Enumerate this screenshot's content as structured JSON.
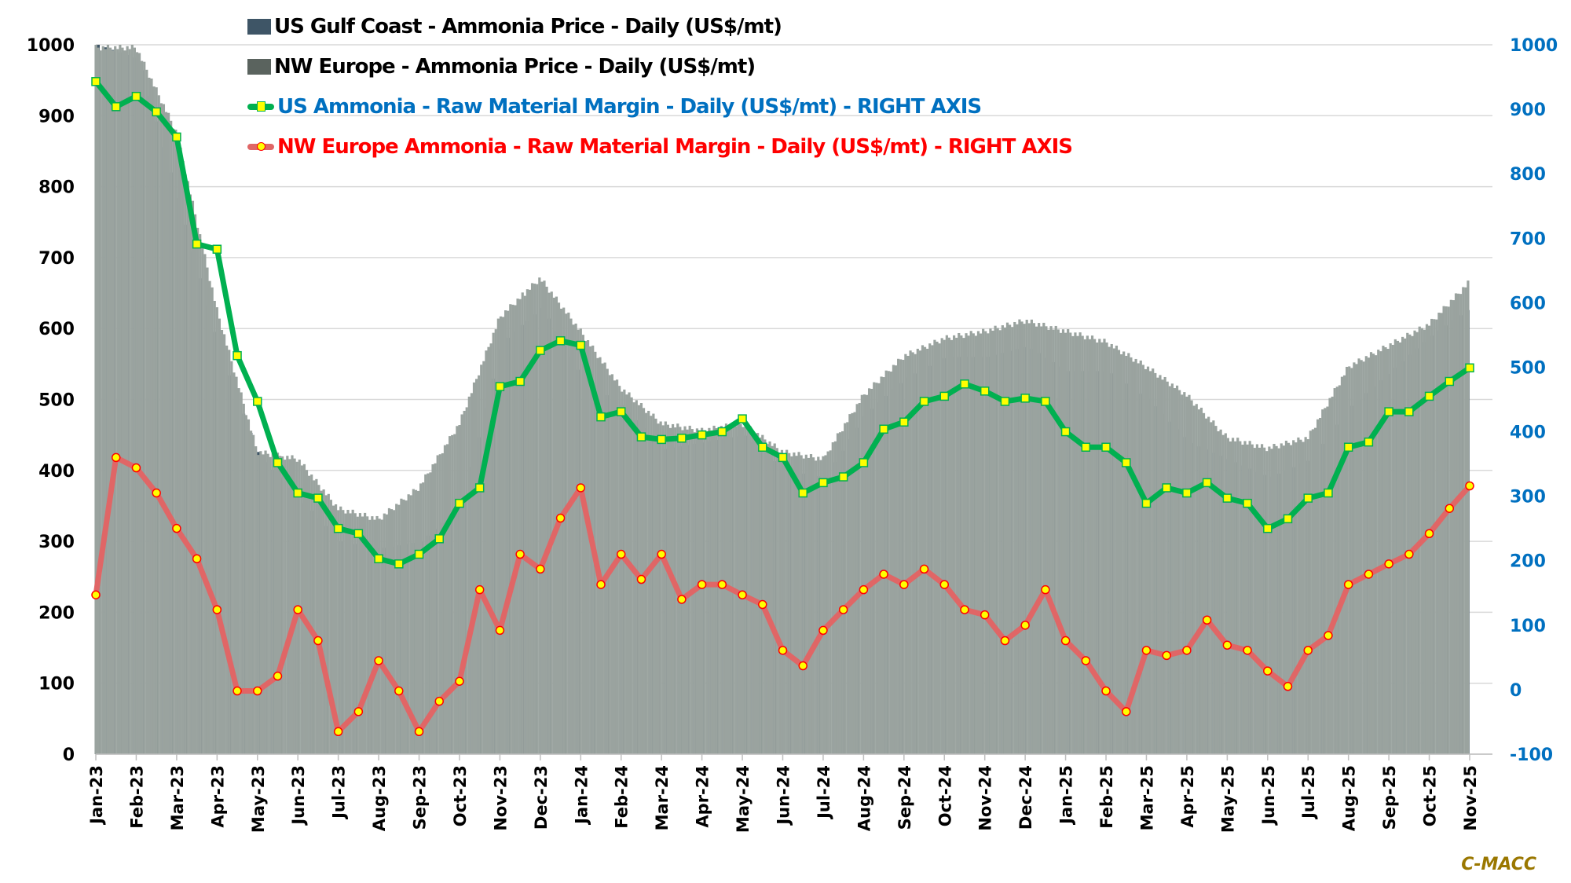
{
  "chart_data": {
    "type": "bar",
    "title": "",
    "xlabel": "",
    "ylabel_left": "",
    "ylabel_right": "",
    "left_axis": {
      "min": 0,
      "max": 1000,
      "ticks": [
        0,
        100,
        200,
        300,
        400,
        500,
        600,
        700,
        800,
        900,
        1000
      ]
    },
    "right_axis": {
      "min": -100,
      "max": 1000,
      "ticks": [
        -100,
        0,
        100,
        200,
        300,
        400,
        500,
        600,
        700,
        800,
        900,
        1000
      ]
    },
    "grid": true,
    "legend_position": "top-left",
    "x_tick_labels": [
      "Jan-23",
      "Feb-23",
      "Mar-23",
      "Apr-23",
      "May-23",
      "Jun-23",
      "Jul-23",
      "Aug-23",
      "Sep-23",
      "Oct-23",
      "Nov-23",
      "Dec-23",
      "Jan-24",
      "Feb-24",
      "Mar-24",
      "Apr-24",
      "May-24",
      "Jun-24",
      "Jul-24",
      "Aug-24",
      "Sep-24",
      "Oct-24",
      "Nov-24",
      "Dec-24",
      "Jan-25",
      "Feb-25",
      "Mar-25",
      "Apr-25",
      "May-25",
      "Jun-25",
      "Jul-25",
      "Aug-25",
      "Sep-25",
      "Oct-25",
      "Nov-25"
    ],
    "series": [
      {
        "name": "US Gulf Coast - Ammonia Price - Daily (US$/mt)",
        "kind": "bar",
        "axis": "left",
        "color": "#3e5566",
        "monthly_values": [
          1000,
          980,
          780,
          570,
          420,
          360,
          300,
          290,
          300,
          350,
          580,
          630,
          530,
          490,
          430,
          440,
          450,
          400,
          390,
          480,
          530,
          560,
          560,
          575,
          540,
          540,
          500,
          440,
          415,
          390,
          415,
          490,
          540,
          590,
          630
        ]
      },
      {
        "name": "NW Europe - Ammonia Price - Daily (US$/mt)",
        "kind": "bar",
        "axis": "left",
        "color": "#9aa39f",
        "monthly_values": [
          1000,
          1000,
          880,
          630,
          430,
          420,
          350,
          335,
          380,
          470,
          620,
          675,
          600,
          520,
          470,
          460,
          470,
          430,
          420,
          510,
          565,
          590,
          600,
          615,
          600,
          585,
          550,
          510,
          450,
          435,
          450,
          550,
          580,
          610,
          670
        ]
      },
      {
        "name": "US Ammonia - Raw Material Margin - Daily (US$/mt) - RIGHT AXIS",
        "kind": "line",
        "axis": "right",
        "color": "#00b050",
        "marker_fill": "#ffff00",
        "semi_monthly_values": [
          943,
          904,
          920,
          896,
          857,
          691,
          683,
          518,
          447,
          352,
          305,
          297,
          250,
          242,
          203,
          195,
          210,
          234,
          289,
          313,
          470,
          478,
          526,
          541,
          534,
          423,
          431,
          392,
          388,
          390,
          395,
          400,
          420,
          376,
          360,
          305,
          321,
          330,
          352,
          404,
          415,
          447,
          455,
          474,
          463,
          447,
          452,
          447,
          400,
          376,
          376,
          352,
          289,
          313,
          305,
          321,
          297,
          289,
          250,
          265,
          297,
          305,
          376,
          384,
          431,
          431,
          455,
          478,
          499
        ]
      },
      {
        "name": "NW Europe Ammonia - Raw Material Margin - Daily (US$/mt) - RIGHT AXIS",
        "kind": "line",
        "axis": "right",
        "color": "#e06666",
        "marker_fill": "#ffff00",
        "marker_stroke": "#ff0000",
        "semi_monthly_values": [
          147,
          360,
          344,
          305,
          250,
          203,
          124,
          -2,
          -2,
          21,
          124,
          76,
          -65,
          -34,
          45,
          -2,
          -65,
          -18,
          13,
          155,
          92,
          210,
          187,
          266,
          313,
          163,
          210,
          171,
          210,
          140,
          163,
          163,
          147,
          132,
          61,
          37,
          92,
          124,
          155,
          179,
          163,
          187,
          163,
          124,
          116,
          76,
          100,
          155,
          76,
          45,
          -2,
          -34,
          61,
          53,
          61,
          108,
          69,
          61,
          29,
          5,
          61,
          84,
          163,
          179,
          195,
          210,
          242,
          281,
          316
        ]
      }
    ]
  },
  "legend": {
    "items": [
      {
        "label": "US Gulf Coast - Ammonia Price - Daily (US$/mt)",
        "color": "#3e5566",
        "text_color": "#000000"
      },
      {
        "label": "NW Europe - Ammonia Price - Daily (US$/mt)",
        "color": "#5a635e",
        "text_color": "#000000"
      },
      {
        "label": "US Ammonia - Raw Material Margin - Daily (US$/mt) - RIGHT AXIS",
        "color": "#00b050",
        "text_color": "#0070c0"
      },
      {
        "label": "NW Europe Ammonia - Raw Material Margin - Daily (US$/mt) - RIGHT AXIS",
        "color": "#e06666",
        "text_color": "#ff0000"
      }
    ]
  },
  "watermark": "C-MACC",
  "colors": {
    "left_axis_text": "#000000",
    "right_axis_text": "#0070c0",
    "grid": "#d9d9d9"
  }
}
